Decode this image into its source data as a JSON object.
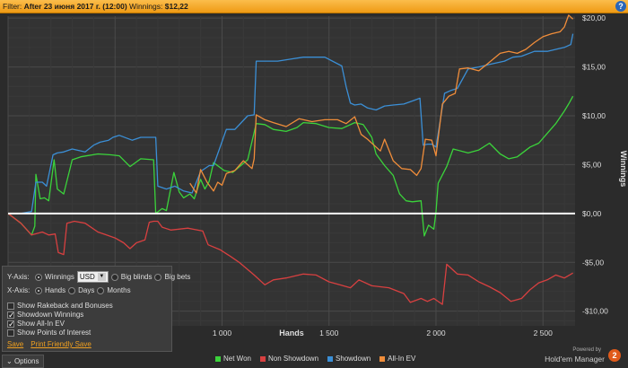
{
  "filter_bar": {
    "filter_label": "Filter:",
    "filter_value": "After 23 июня 2017 г. (12:00)",
    "winnings_label": "Winnings:",
    "winnings_value": "$12,22",
    "help_glyph": "?"
  },
  "chart_data": {
    "type": "line",
    "xlabel": "Hands",
    "ylabel": "Winnings",
    "xlim": [
      0,
      2650
    ],
    "ylim": [
      -11.5,
      20.2
    ],
    "x_ticks": [
      1000,
      1500,
      2000,
      2500
    ],
    "x_tick_labels": [
      "1 000",
      "1 500",
      "2 000",
      "2 500"
    ],
    "y_ticks": [
      -10,
      -5,
      0,
      5,
      10,
      15,
      20
    ],
    "y_tick_labels": [
      "-$10,00",
      "-$5,00",
      "$0,00",
      "$5,00",
      "$10,00",
      "$15,00",
      "$20,00"
    ],
    "y_axis_position": "right",
    "grid": true,
    "legend_position": "bottom-center",
    "series": [
      {
        "name": "Net Won",
        "color": "#3bd33b",
        "points": [
          [
            0,
            0
          ],
          [
            60,
            -1
          ],
          [
            110,
            -2.2
          ],
          [
            125,
            -1.3
          ],
          [
            130,
            4
          ],
          [
            150,
            1.5
          ],
          [
            170,
            1.6
          ],
          [
            190,
            1.3
          ],
          [
            215,
            5.5
          ],
          [
            230,
            2.5
          ],
          [
            260,
            2
          ],
          [
            300,
            5.5
          ],
          [
            340,
            5.8
          ],
          [
            420,
            6.1
          ],
          [
            480,
            6
          ],
          [
            520,
            5.9
          ],
          [
            570,
            4.8
          ],
          [
            620,
            5.6
          ],
          [
            680,
            5.5
          ],
          [
            690,
            0
          ],
          [
            720,
            0.5
          ],
          [
            740,
            0.3
          ],
          [
            775,
            4.2
          ],
          [
            800,
            2.2
          ],
          [
            820,
            1.6
          ],
          [
            850,
            2
          ],
          [
            870,
            1.5
          ],
          [
            900,
            3.5
          ],
          [
            920,
            2.5
          ],
          [
            940,
            3.3
          ],
          [
            960,
            5.2
          ],
          [
            1010,
            4.4
          ],
          [
            1050,
            4.2
          ],
          [
            1120,
            5.5
          ],
          [
            1160,
            9.2
          ],
          [
            1200,
            9.1
          ],
          [
            1240,
            8.6
          ],
          [
            1300,
            8.4
          ],
          [
            1350,
            8.8
          ],
          [
            1380,
            9.3
          ],
          [
            1440,
            9.2
          ],
          [
            1500,
            8.8
          ],
          [
            1560,
            8.7
          ],
          [
            1620,
            9.3
          ],
          [
            1660,
            9.1
          ],
          [
            1700,
            7.8
          ],
          [
            1720,
            6.1
          ],
          [
            1760,
            4.9
          ],
          [
            1800,
            3.9
          ],
          [
            1830,
            2
          ],
          [
            1860,
            1.3
          ],
          [
            1890,
            1.2
          ],
          [
            1930,
            1.3
          ],
          [
            1945,
            -2.3
          ],
          [
            1965,
            -1.2
          ],
          [
            1990,
            -1.6
          ],
          [
            2000,
            0.2
          ],
          [
            2010,
            3.1
          ],
          [
            2050,
            4.8
          ],
          [
            2080,
            6.6
          ],
          [
            2150,
            6.2
          ],
          [
            2200,
            6.5
          ],
          [
            2250,
            7.2
          ],
          [
            2300,
            6.1
          ],
          [
            2340,
            5.6
          ],
          [
            2380,
            5.8
          ],
          [
            2440,
            6.8
          ],
          [
            2480,
            7.2
          ],
          [
            2520,
            8.2
          ],
          [
            2560,
            9.2
          ],
          [
            2600,
            10.5
          ],
          [
            2620,
            11.2
          ],
          [
            2640,
            12
          ]
        ]
      },
      {
        "name": "Non Showdown",
        "color": "#d84040",
        "points": [
          [
            0,
            0
          ],
          [
            60,
            -1
          ],
          [
            110,
            -2.2
          ],
          [
            160,
            -1.9
          ],
          [
            190,
            -2.2
          ],
          [
            220,
            -2.1
          ],
          [
            235,
            -4
          ],
          [
            260,
            -4.2
          ],
          [
            275,
            -1
          ],
          [
            310,
            -0.8
          ],
          [
            360,
            -1
          ],
          [
            420,
            -1.9
          ],
          [
            460,
            -2.2
          ],
          [
            500,
            -2.5
          ],
          [
            540,
            -3
          ],
          [
            570,
            -3.6
          ],
          [
            600,
            -3
          ],
          [
            640,
            -2.7
          ],
          [
            660,
            -0.9
          ],
          [
            680,
            -0.8
          ],
          [
            700,
            -0.8
          ],
          [
            720,
            -1.4
          ],
          [
            760,
            -1.7
          ],
          [
            840,
            -1.5
          ],
          [
            910,
            -1.8
          ],
          [
            935,
            -3.2
          ],
          [
            990,
            -3.7
          ],
          [
            1040,
            -4.4
          ],
          [
            1080,
            -5
          ],
          [
            1150,
            -6.3
          ],
          [
            1200,
            -7.3
          ],
          [
            1240,
            -6.8
          ],
          [
            1300,
            -6.6
          ],
          [
            1380,
            -6.2
          ],
          [
            1440,
            -6.3
          ],
          [
            1500,
            -7
          ],
          [
            1550,
            -7.3
          ],
          [
            1600,
            -7.6
          ],
          [
            1640,
            -6.8
          ],
          [
            1700,
            -7.4
          ],
          [
            1780,
            -7.6
          ],
          [
            1850,
            -8.2
          ],
          [
            1880,
            -9.1
          ],
          [
            1930,
            -8.7
          ],
          [
            1960,
            -9
          ],
          [
            1990,
            -8.7
          ],
          [
            2030,
            -9.3
          ],
          [
            2050,
            -5.2
          ],
          [
            2100,
            -6.2
          ],
          [
            2150,
            -6.3
          ],
          [
            2200,
            -7
          ],
          [
            2250,
            -7.5
          ],
          [
            2300,
            -8.1
          ],
          [
            2350,
            -9
          ],
          [
            2400,
            -8.7
          ],
          [
            2440,
            -7.8
          ],
          [
            2480,
            -7.1
          ],
          [
            2520,
            -6.8
          ],
          [
            2560,
            -6.3
          ],
          [
            2600,
            -6.6
          ],
          [
            2640,
            -6.1
          ]
        ]
      },
      {
        "name": "Showdown",
        "color": "#3b8fd6",
        "points": [
          [
            0,
            0
          ],
          [
            60,
            0
          ],
          [
            110,
            0.2
          ],
          [
            130,
            3.2
          ],
          [
            160,
            3.2
          ],
          [
            180,
            2.8
          ],
          [
            210,
            6
          ],
          [
            230,
            6.2
          ],
          [
            260,
            6.3
          ],
          [
            300,
            6.6
          ],
          [
            360,
            6.3
          ],
          [
            400,
            7
          ],
          [
            430,
            7.3
          ],
          [
            470,
            7.5
          ],
          [
            490,
            7.8
          ],
          [
            520,
            8
          ],
          [
            580,
            7.5
          ],
          [
            620,
            7.8
          ],
          [
            670,
            7.8
          ],
          [
            690,
            7.8
          ],
          [
            700,
            2.8
          ],
          [
            740,
            2.5
          ],
          [
            780,
            2.8
          ],
          [
            820,
            2.3
          ],
          [
            860,
            2.1
          ],
          [
            900,
            4.3
          ],
          [
            940,
            4.9
          ],
          [
            960,
            4.9
          ],
          [
            1020,
            8.6
          ],
          [
            1060,
            8.6
          ],
          [
            1120,
            10
          ],
          [
            1150,
            10.1
          ],
          [
            1160,
            15.6
          ],
          [
            1210,
            15.6
          ],
          [
            1260,
            15.6
          ],
          [
            1320,
            15.8
          ],
          [
            1380,
            16
          ],
          [
            1440,
            16
          ],
          [
            1480,
            16
          ],
          [
            1560,
            15.1
          ],
          [
            1580,
            13
          ],
          [
            1600,
            11.3
          ],
          [
            1620,
            11.1
          ],
          [
            1650,
            11.2
          ],
          [
            1680,
            10.8
          ],
          [
            1720,
            10.6
          ],
          [
            1760,
            11
          ],
          [
            1800,
            11.1
          ],
          [
            1850,
            11.2
          ],
          [
            1900,
            11.6
          ],
          [
            1925,
            11.8
          ],
          [
            1940,
            7
          ],
          [
            1960,
            7.1
          ],
          [
            1980,
            7.1
          ],
          [
            2000,
            6.8
          ],
          [
            2040,
            12.3
          ],
          [
            2070,
            12.6
          ],
          [
            2100,
            12.8
          ],
          [
            2150,
            14.8
          ],
          [
            2200,
            15
          ],
          [
            2260,
            15.3
          ],
          [
            2320,
            15.6
          ],
          [
            2360,
            16
          ],
          [
            2400,
            16.1
          ],
          [
            2460,
            16.6
          ],
          [
            2520,
            16.6
          ],
          [
            2560,
            16.8
          ],
          [
            2600,
            17
          ],
          [
            2630,
            17.3
          ],
          [
            2640,
            18.4
          ]
        ]
      },
      {
        "name": "All-In EV",
        "color": "#f08d3a",
        "points": [
          [
            850,
            3.1
          ],
          [
            880,
            2.1
          ],
          [
            900,
            4.5
          ],
          [
            930,
            3.2
          ],
          [
            960,
            2.3
          ],
          [
            980,
            3.2
          ],
          [
            1000,
            2.9
          ],
          [
            1020,
            4.1
          ],
          [
            1060,
            4.4
          ],
          [
            1100,
            5.4
          ],
          [
            1140,
            4.6
          ],
          [
            1150,
            5.6
          ],
          [
            1160,
            10.1
          ],
          [
            1200,
            9.6
          ],
          [
            1240,
            9.3
          ],
          [
            1300,
            8.9
          ],
          [
            1360,
            9.7
          ],
          [
            1420,
            9.4
          ],
          [
            1480,
            9.6
          ],
          [
            1540,
            9.6
          ],
          [
            1580,
            9.2
          ],
          [
            1620,
            9.9
          ],
          [
            1650,
            8.1
          ],
          [
            1680,
            7.6
          ],
          [
            1710,
            7
          ],
          [
            1740,
            6.4
          ],
          [
            1760,
            7.6
          ],
          [
            1800,
            5.4
          ],
          [
            1840,
            4.6
          ],
          [
            1880,
            4.5
          ],
          [
            1910,
            3.9
          ],
          [
            1930,
            4.6
          ],
          [
            1950,
            7.6
          ],
          [
            1980,
            7.5
          ],
          [
            2000,
            5.9
          ],
          [
            2030,
            11.2
          ],
          [
            2060,
            12
          ],
          [
            2090,
            12.3
          ],
          [
            2110,
            14.8
          ],
          [
            2150,
            14.9
          ],
          [
            2200,
            14.6
          ],
          [
            2240,
            15.3
          ],
          [
            2300,
            16.4
          ],
          [
            2340,
            16.6
          ],
          [
            2380,
            16.4
          ],
          [
            2420,
            16.8
          ],
          [
            2460,
            17.5
          ],
          [
            2500,
            18.1
          ],
          [
            2540,
            18.4
          ],
          [
            2580,
            18.6
          ],
          [
            2600,
            19.1
          ],
          [
            2620,
            20.3
          ],
          [
            2640,
            19.9
          ]
        ]
      }
    ]
  },
  "options_panel": {
    "y_axis_label": "Y-Axis:",
    "y_options": [
      "Winnings",
      "Big blinds",
      "Big bets"
    ],
    "currency_value": "USD",
    "x_axis_label": "X-Axis:",
    "x_options": [
      "Hands",
      "Days",
      "Months"
    ],
    "checkboxes": [
      {
        "label": "Show Rakeback and Bonuses",
        "checked": false
      },
      {
        "label": "Showdown Winnings",
        "checked": true
      },
      {
        "label": "Show All-In EV",
        "checked": true
      },
      {
        "label": "Show Points of Interest",
        "checked": false
      }
    ],
    "save_link": "Save",
    "print_link": "Print Friendly Save"
  },
  "bottom": {
    "options_button": "Options",
    "options_glyph": "⌄",
    "legend": [
      {
        "label": "Net Won",
        "color": "#3bd33b"
      },
      {
        "label": "Non Showdown",
        "color": "#d84040"
      },
      {
        "label": "Showdown",
        "color": "#3b8fd6"
      },
      {
        "label": "All-In EV",
        "color": "#f08d3a"
      }
    ],
    "powered_by": "Powered by",
    "brand": "Hold'em Manager",
    "brand_badge": "2"
  }
}
